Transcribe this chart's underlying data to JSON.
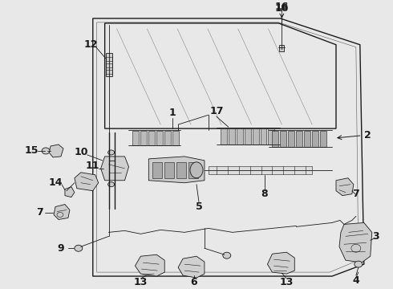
{
  "bg": "#e8e8e8",
  "lc": "#1a1a1a",
  "fig_w": 4.9,
  "fig_h": 3.6,
  "dpi": 100,
  "label_fs": 9
}
